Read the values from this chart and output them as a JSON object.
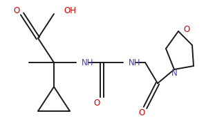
{
  "background_color": "#ffffff",
  "line_color": "#1a1a1a",
  "nitrogen_color": "#4040aa",
  "oxygen_color": "#cc0000",
  "line_width": 1.4,
  "figsize": [
    2.98,
    1.8
  ],
  "dpi": 100,
  "xlim": [
    0,
    298
  ],
  "ylim": [
    0,
    180
  ]
}
